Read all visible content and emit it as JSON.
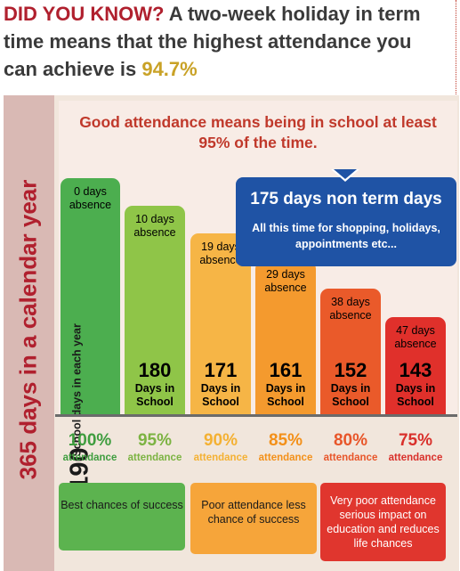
{
  "headline": {
    "prefix": "DID YOU KNOW?",
    "text": " A two-week holiday in term time means that the highest attendance you can achieve is ",
    "highlight": "94.7%"
  },
  "sidebar_label": "365 days in a calendar year",
  "good_attendance": "Good attendance means being in school at least 95% of the time.",
  "non_term": {
    "title": "175 days non term days",
    "body": "All this time for shopping, holidays, appointments etc..."
  },
  "bars": [
    {
      "absence": "0 days absence",
      "days": "190",
      "label": "School days in each year",
      "color": "#4cae4f"
    },
    {
      "absence": "10 days absence",
      "days": "180",
      "label": "Days in School",
      "color": "#8fc548"
    },
    {
      "absence": "19 days absence",
      "days": "171",
      "label": "Days in School",
      "color": "#f6b546"
    },
    {
      "absence": "29 days absence",
      "days": "161",
      "label": "Days in School",
      "color": "#f49a2e"
    },
    {
      "absence": "38 days absence",
      "days": "152",
      "label": "Days in School",
      "color": "#ea5a2a"
    },
    {
      "absence": "47 days absence",
      "days": "143",
      "label": "Days in School",
      "color": "#e0302b"
    }
  ],
  "attendance": [
    {
      "percent": "100%",
      "label": "attendance",
      "color": "#3f9d3f"
    },
    {
      "percent": "95%",
      "label": "attendance",
      "color": "#7cb342"
    },
    {
      "percent": "90%",
      "label": "attendance",
      "color": "#f4b133"
    },
    {
      "percent": "85%",
      "label": "attendance",
      "color": "#f39019"
    },
    {
      "percent": "80%",
      "label": "attendance",
      "color": "#e8562a"
    },
    {
      "percent": "75%",
      "label": "attendance",
      "color": "#d9302b"
    }
  ],
  "outcomes": [
    {
      "text": "Best chances of success",
      "color": "#5cb34f"
    },
    {
      "text": "Poor attendance less chance of success",
      "color": "#f6a53a"
    },
    {
      "text": "Very poor attendance serious impact on education and reduces life chances",
      "color": "#e0362e"
    }
  ]
}
